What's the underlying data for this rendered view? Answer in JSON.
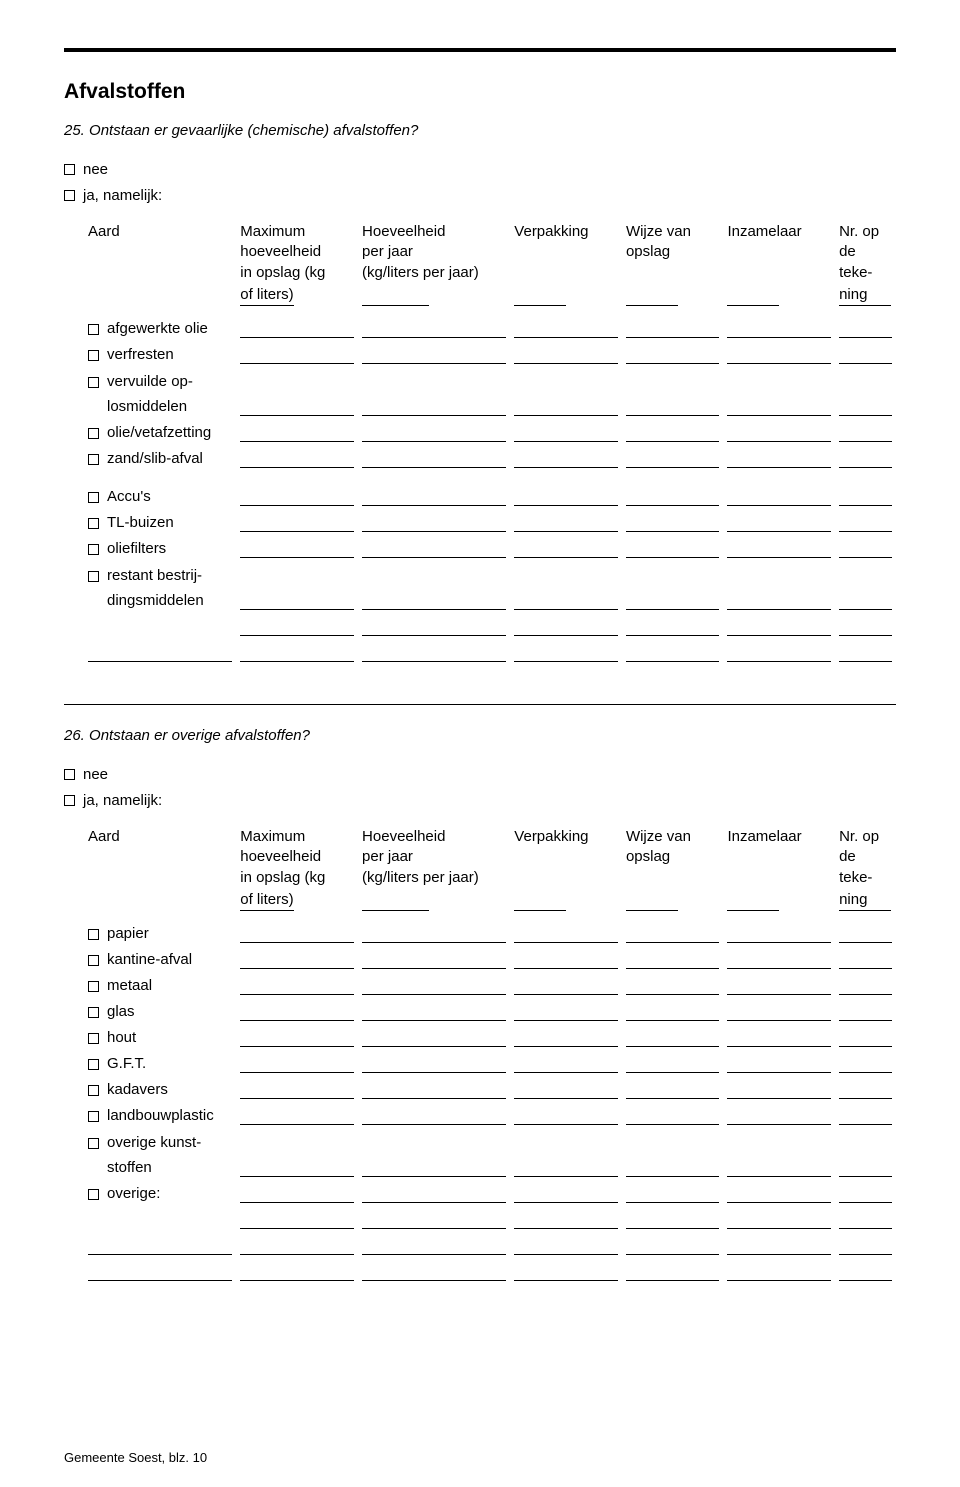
{
  "page": {
    "title": "Afvalstoffen",
    "footer": "Gemeente Soest, blz. 10"
  },
  "q25": {
    "number_text": "25.",
    "text": "Ontstaan er gevaarlijke (chemische) afvalstoffen?",
    "options": {
      "nee": "nee",
      "ja": "ja, namelijk:"
    },
    "headers": {
      "aard": "Aard",
      "max_l1": "Maximum",
      "max_l2": "hoeveelheid",
      "max_l3": "in opslag (kg",
      "max_l4": "of liters)",
      "hvh_l1": "Hoeveelheid",
      "hvh_l2": "per jaar",
      "hvh_l3": "(kg/liters per jaar)",
      "verp": "Verpakking",
      "wijze_l1": "Wijze van",
      "wijze_l2": "opslag",
      "inz": "Inzamelaar",
      "nr_l1": "Nr. op",
      "nr_l2": "de",
      "nr_l3": "teke-",
      "nr_l4": "ning"
    },
    "rows": [
      {
        "label": "afgewerkte olie"
      },
      {
        "label": "verfresten"
      },
      {
        "label_l1": "vervuilde op-",
        "label_l2": "losmiddelen"
      },
      {
        "label": "olie/vetafzetting"
      },
      {
        "label": "zand/slib-afval"
      }
    ],
    "rows2": [
      {
        "label": "Accu's"
      },
      {
        "label": "TL-buizen"
      },
      {
        "label": "oliefilters"
      },
      {
        "label_l1": "restant bestrij-",
        "label_l2": "dingsmiddelen"
      }
    ]
  },
  "q26": {
    "number_text": "26.",
    "text": "Ontstaan er overige afvalstoffen?",
    "options": {
      "nee": "nee",
      "ja": "ja, namelijk:"
    },
    "headers": {
      "aard": "Aard",
      "max_l1": "Maximum",
      "max_l2": "hoeveelheid",
      "max_l3": "in opslag (kg",
      "max_l4": "of liters)",
      "hvh_l1": "Hoeveelheid",
      "hvh_l2": "per jaar",
      "hvh_l3": "(kg/liters per jaar)",
      "verp": "Verpakking",
      "wijze_l1": "Wijze van",
      "wijze_l2": "opslag",
      "inz": "Inzamelaar",
      "nr_l1": "Nr. op",
      "nr_l2": "de",
      "nr_l3": "teke-",
      "nr_l4": "ning"
    },
    "rows": [
      {
        "label": "papier"
      },
      {
        "label": "kantine-afval"
      },
      {
        "label": "metaal"
      },
      {
        "label": "glas"
      },
      {
        "label": "hout"
      },
      {
        "label": "G.F.T."
      },
      {
        "label": "kadavers"
      },
      {
        "label": "landbouwplastic"
      },
      {
        "label_l1": "overige kunst-",
        "label_l2": "stoffen"
      },
      {
        "label": "overige:"
      }
    ]
  }
}
